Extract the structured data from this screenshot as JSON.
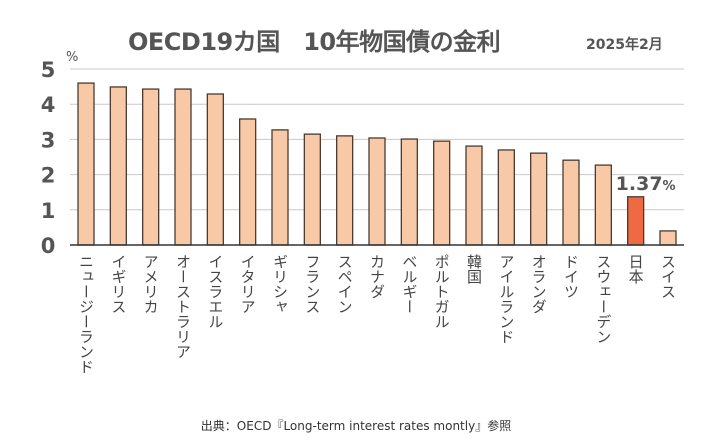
{
  "title": "OECD19カ国　10年物国債の金利",
  "subtitle": "2025年2月",
  "source": "出典：OECD『Long-term interest rates montly』参照",
  "chart_data": {
    "type": "bar",
    "ylabel": "%",
    "ylim": [
      0,
      5
    ],
    "yticks": [
      "0",
      "1",
      "2",
      "3",
      "4",
      "5"
    ],
    "grid": true,
    "categories": [
      "ニュージーランド",
      "イギリス",
      "アメリカ",
      "オーストラリア",
      "イスラエル",
      "イタリア",
      "ギリシャ",
      "フランス",
      "スペイン",
      "カナダ",
      "ベルギー",
      "ポルトガル",
      "韓国",
      "アイルランド",
      "オランダ",
      "ドイツ",
      "スウェーデン",
      "日本",
      "スイス"
    ],
    "values": [
      4.6,
      4.49,
      4.43,
      4.43,
      4.29,
      3.58,
      3.27,
      3.15,
      3.1,
      3.04,
      3.01,
      2.95,
      2.81,
      2.7,
      2.61,
      2.41,
      2.27,
      1.37,
      0.4
    ],
    "highlight": {
      "category": "日本",
      "label_value": "1.37",
      "label_unit": "%"
    },
    "colors": {
      "bar": "#f7c9a6",
      "highlight": "#ee6a43",
      "outline": "#4a3a30",
      "grid": "#c8c8c8"
    }
  }
}
